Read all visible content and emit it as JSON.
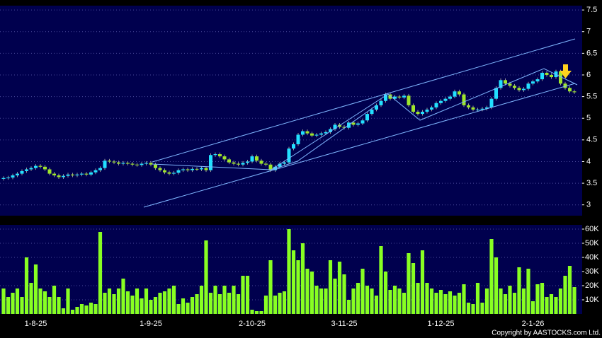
{
  "chart_data": {
    "type": "candlestick",
    "categories": [
      null,
      null,
      null,
      null,
      null,
      null,
      null,
      "1-8-25",
      null,
      null,
      null,
      null,
      null,
      null,
      null,
      null,
      null,
      null,
      null,
      null,
      null,
      null,
      null,
      null,
      null,
      null,
      null,
      null,
      null,
      null,
      null,
      null,
      "1-9-25",
      null,
      null,
      null,
      null,
      null,
      null,
      null,
      null,
      null,
      null,
      null,
      null,
      null,
      null,
      null,
      null,
      null,
      null,
      null,
      null,
      null,
      "2-10-25",
      null,
      null,
      null,
      null,
      null,
      null,
      null,
      null,
      null,
      null,
      null,
      null,
      null,
      null,
      null,
      null,
      null,
      null,
      null,
      "3-11-25",
      null,
      null,
      null,
      null,
      null,
      null,
      null,
      null,
      null,
      null,
      null,
      null,
      null,
      null,
      null,
      null,
      null,
      null,
      null,
      null,
      "1-12-25",
      null,
      null,
      null,
      null,
      null,
      null,
      null,
      null,
      null,
      null,
      null,
      null,
      null,
      null,
      null,
      null,
      null,
      null,
      null,
      "2-1-26",
      null,
      null,
      null,
      null,
      null,
      null,
      null,
      null,
      null
    ],
    "open": [
      3.6,
      3.62,
      3.63,
      3.68,
      3.72,
      3.78,
      3.82,
      3.85,
      3.9,
      3.88,
      3.82,
      3.72,
      3.68,
      3.64,
      3.67,
      3.7,
      3.68,
      3.7,
      3.72,
      3.7,
      3.75,
      3.8,
      3.85,
      4.02,
      4.0,
      3.98,
      3.95,
      3.97,
      3.95,
      3.93,
      3.92,
      3.95,
      3.97,
      3.93,
      3.85,
      3.8,
      3.75,
      3.72,
      3.74,
      3.8,
      3.82,
      3.8,
      3.83,
      3.82,
      3.85,
      3.8,
      4.15,
      4.17,
      4.12,
      4.05,
      3.98,
      3.95,
      3.93,
      3.97,
      4.0,
      4.12,
      4.02,
      3.95,
      3.93,
      3.8,
      3.88,
      3.95,
      3.98,
      4.3,
      4.4,
      4.62,
      4.7,
      4.65,
      4.6,
      4.62,
      4.65,
      4.68,
      4.75,
      4.85,
      4.8,
      4.78,
      4.9,
      4.85,
      4.88,
      4.95,
      5.1,
      5.2,
      5.3,
      5.4,
      5.55,
      5.45,
      5.5,
      5.48,
      5.52,
      5.3,
      5.15,
      5.1,
      5.15,
      5.2,
      5.25,
      5.35,
      5.4,
      5.45,
      5.5,
      5.62,
      5.55,
      5.3,
      5.25,
      5.2,
      5.2,
      5.22,
      5.25,
      5.45,
      5.7,
      5.88,
      5.8,
      5.75,
      5.7,
      5.65,
      5.68,
      5.8,
      5.85,
      5.9,
      6.05,
      6.0,
      5.95,
      6.08,
      5.8,
      5.7,
      5.62
    ],
    "high": [
      3.66,
      3.67,
      3.72,
      3.76,
      3.82,
      3.86,
      3.89,
      3.94,
      3.94,
      3.92,
      3.86,
      3.76,
      3.72,
      3.71,
      3.74,
      3.74,
      3.74,
      3.76,
      3.76,
      3.79,
      3.84,
      3.89,
      4.06,
      4.06,
      4.04,
      4.02,
      4.01,
      4.01,
      3.99,
      3.97,
      3.99,
      4.01,
      4.01,
      3.97,
      3.89,
      3.84,
      3.79,
      3.78,
      3.84,
      3.86,
      3.86,
      3.87,
      3.87,
      3.89,
      3.89,
      4.19,
      4.21,
      4.21,
      4.16,
      4.09,
      4.02,
      3.99,
      4.01,
      4.04,
      4.16,
      4.16,
      4.06,
      3.99,
      3.97,
      3.92,
      3.99,
      4.02,
      4.34,
      4.44,
      4.66,
      4.74,
      4.74,
      4.69,
      4.66,
      4.69,
      4.72,
      4.79,
      4.89,
      4.89,
      4.84,
      4.94,
      4.94,
      4.92,
      4.99,
      5.14,
      5.24,
      5.34,
      5.44,
      5.59,
      5.59,
      5.54,
      5.54,
      5.56,
      5.56,
      5.34,
      5.19,
      5.19,
      5.24,
      5.29,
      5.39,
      5.44,
      5.49,
      5.54,
      5.66,
      5.66,
      5.59,
      5.34,
      5.29,
      5.24,
      5.26,
      5.29,
      5.49,
      5.74,
      5.92,
      5.92,
      5.84,
      5.79,
      5.74,
      5.72,
      5.84,
      5.89,
      5.94,
      6.09,
      6.09,
      6.04,
      6.12,
      6.12,
      5.84,
      5.74,
      5.66
    ],
    "low": [
      3.56,
      3.58,
      3.59,
      3.64,
      3.68,
      3.74,
      3.78,
      3.81,
      3.84,
      3.78,
      3.68,
      3.64,
      3.6,
      3.6,
      3.63,
      3.64,
      3.64,
      3.66,
      3.66,
      3.66,
      3.71,
      3.76,
      3.81,
      3.96,
      3.94,
      3.91,
      3.91,
      3.91,
      3.89,
      3.88,
      3.88,
      3.91,
      3.89,
      3.81,
      3.76,
      3.71,
      3.68,
      3.68,
      3.7,
      3.76,
      3.76,
      3.76,
      3.78,
      3.78,
      3.76,
      3.76,
      4.11,
      4.08,
      4.01,
      3.94,
      3.91,
      3.89,
      3.89,
      3.93,
      3.96,
      3.98,
      3.91,
      3.89,
      3.76,
      3.76,
      3.84,
      3.91,
      3.94,
      4.26,
      4.36,
      4.58,
      4.61,
      4.56,
      4.56,
      4.58,
      4.61,
      4.64,
      4.71,
      4.76,
      4.74,
      4.74,
      4.81,
      4.81,
      4.84,
      4.91,
      5.06,
      5.16,
      5.26,
      5.36,
      5.41,
      5.41,
      5.44,
      5.44,
      5.26,
      5.11,
      5.06,
      5.06,
      5.11,
      5.16,
      5.21,
      5.31,
      5.36,
      5.41,
      5.46,
      5.51,
      5.26,
      5.21,
      5.16,
      5.16,
      5.16,
      5.18,
      5.21,
      5.41,
      5.66,
      5.76,
      5.71,
      5.66,
      5.61,
      5.61,
      5.64,
      5.76,
      5.81,
      5.86,
      5.96,
      5.91,
      5.91,
      5.76,
      5.66,
      5.58,
      5.56
    ],
    "close": [
      3.62,
      3.63,
      3.68,
      3.72,
      3.78,
      3.82,
      3.85,
      3.9,
      3.88,
      3.82,
      3.72,
      3.68,
      3.64,
      3.67,
      3.7,
      3.68,
      3.7,
      3.72,
      3.7,
      3.75,
      3.8,
      3.85,
      4.02,
      4.0,
      3.98,
      3.95,
      3.97,
      3.95,
      3.93,
      3.92,
      3.95,
      3.97,
      3.93,
      3.85,
      3.8,
      3.75,
      3.72,
      3.74,
      3.8,
      3.82,
      3.8,
      3.83,
      3.82,
      3.85,
      3.8,
      4.15,
      4.17,
      4.12,
      4.05,
      3.98,
      3.95,
      3.93,
      3.97,
      4.0,
      4.12,
      4.02,
      3.95,
      3.93,
      3.8,
      3.88,
      3.95,
      3.98,
      4.3,
      4.4,
      4.62,
      4.7,
      4.65,
      4.6,
      4.62,
      4.65,
      4.68,
      4.75,
      4.85,
      4.8,
      4.78,
      4.9,
      4.85,
      4.88,
      4.95,
      5.1,
      5.2,
      5.3,
      5.4,
      5.55,
      5.45,
      5.5,
      5.48,
      5.52,
      5.3,
      5.15,
      5.1,
      5.15,
      5.2,
      5.25,
      5.35,
      5.4,
      5.45,
      5.5,
      5.62,
      5.55,
      5.3,
      5.25,
      5.2,
      5.2,
      5.22,
      5.25,
      5.45,
      5.7,
      5.88,
      5.8,
      5.75,
      5.7,
      5.65,
      5.68,
      5.8,
      5.85,
      5.9,
      6.05,
      6.0,
      5.95,
      6.08,
      5.8,
      5.7,
      5.62,
      5.6
    ],
    "volume": [
      18000,
      12000,
      15000,
      18000,
      12000,
      40000,
      22000,
      35000,
      18000,
      16000,
      12000,
      20000,
      12000,
      4000,
      18000,
      3000,
      5000,
      7000,
      6000,
      8000,
      7000,
      58000,
      15000,
      18000,
      14000,
      18000,
      25000,
      16000,
      13000,
      18000,
      11000,
      18000,
      10000,
      12000,
      15000,
      16000,
      18000,
      20000,
      7000,
      11000,
      8000,
      12000,
      14000,
      20000,
      52000,
      15000,
      20000,
      14000,
      20000,
      15000,
      20000,
      14000,
      27000,
      27000,
      3000,
      2000,
      2000,
      13000,
      38000,
      13000,
      15000,
      16000,
      60000,
      45000,
      38000,
      50000,
      32000,
      30000,
      20000,
      18000,
      18000,
      38000,
      25000,
      37000,
      28000,
      10000,
      18000,
      22000,
      32000,
      20000,
      18000,
      13000,
      48000,
      30000,
      17000,
      20000,
      18000,
      15000,
      43000,
      36000,
      22000,
      45000,
      22000,
      18000,
      15000,
      17000,
      14000,
      16000,
      13000,
      15000,
      21000,
      8000,
      7000,
      22000,
      8000,
      18000,
      53000,
      40000,
      18000,
      14000,
      20000,
      15000,
      33000,
      18000,
      32000,
      9000,
      21000,
      22000,
      12000,
      14000,
      12000,
      18000,
      27000,
      34000,
      19000
    ],
    "ylim": [
      2.75,
      7.6
    ],
    "yticks": [
      3,
      3.5,
      4,
      4.5,
      5,
      5.5,
      6,
      6.5,
      7,
      7.5
    ],
    "y2lim": [
      0,
      63000
    ],
    "y2ticks": [
      {
        "value": 10000,
        "label": "10K"
      },
      {
        "value": 20000,
        "label": "20K"
      },
      {
        "value": 30000,
        "label": "30K"
      },
      {
        "value": 40000,
        "label": "40K"
      },
      {
        "value": 50000,
        "label": "50K"
      },
      {
        "value": 60000,
        "label": "60K"
      }
    ],
    "grid": true,
    "up_color": "#22e0ff",
    "down_color": "#9ee62a",
    "volume_color": "#88ff22"
  },
  "footer": "Copyright by AASTOCKS.com Ltd."
}
